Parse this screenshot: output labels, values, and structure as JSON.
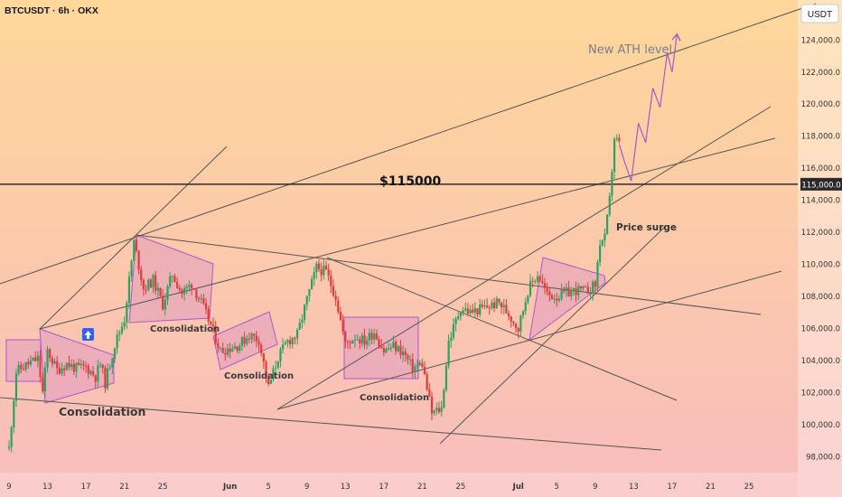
{
  "header": {
    "symbol": "BTCUSDT · 6h · OKX",
    "currency": "USDT"
  },
  "annotations": {
    "ath": "New ATH level",
    "level": "$115000",
    "surge": "Price surge",
    "consolidation": "Consolidation"
  },
  "colors": {
    "bg_top": "#ffd79a",
    "bg_bottom": "#f8bcbc",
    "up": "#2ca25f",
    "down": "#e23b3b",
    "zone_fill": "#d890c4",
    "zone_stroke": "#b058c8",
    "projection": "#a25ad0",
    "trendline": "#555555",
    "hline": "#2b2b2b"
  },
  "chart_data": {
    "type": "candlestick",
    "ylim": [
      97000,
      126500
    ],
    "y_ticks": [
      98000,
      100000,
      102000,
      104000,
      106000,
      108000,
      110000,
      112000,
      114000,
      116000,
      118000,
      120000,
      122000,
      124000
    ],
    "y_tick_labels": [
      "98,000.0",
      "100,000.0",
      "102,000.0",
      "104,000.0",
      "106,000.0",
      "108,000.0",
      "110,000.0",
      "112,000.0",
      "114,000.0",
      "116,000.0",
      "118,000.0",
      "120,000.0",
      "122,000.0",
      "124,000.0"
    ],
    "x_range": [
      "2025-05-09",
      "2025-07-28"
    ],
    "x_ticks": [
      {
        "date": "2025-05-09",
        "label": "9"
      },
      {
        "date": "2025-05-13",
        "label": "13"
      },
      {
        "date": "2025-05-17",
        "label": "17"
      },
      {
        "date": "2025-05-21",
        "label": "21"
      },
      {
        "date": "2025-05-25",
        "label": "25"
      },
      {
        "date": "2025-06-01",
        "label": "Jun"
      },
      {
        "date": "2025-06-05",
        "label": "5"
      },
      {
        "date": "2025-06-09",
        "label": "9"
      },
      {
        "date": "2025-06-13",
        "label": "13"
      },
      {
        "date": "2025-06-17",
        "label": "17"
      },
      {
        "date": "2025-06-21",
        "label": "21"
      },
      {
        "date": "2025-06-25",
        "label": "25"
      },
      {
        "date": "2025-07-01",
        "label": "Jul"
      },
      {
        "date": "2025-07-05",
        "label": "5"
      },
      {
        "date": "2025-07-09",
        "label": "9"
      },
      {
        "date": "2025-07-13",
        "label": "13"
      },
      {
        "date": "2025-07-17",
        "label": "17"
      },
      {
        "date": "2025-07-21",
        "label": "21"
      },
      {
        "date": "2025-07-25",
        "label": "25"
      }
    ],
    "price_level": {
      "value": 115000,
      "label": "115,000.0"
    },
    "price_path": [
      [
        "2025-05-09",
        98500
      ],
      [
        "2025-05-09T18:00",
        103300
      ],
      [
        "2025-05-11",
        103800
      ],
      [
        "2025-05-12",
        104100
      ],
      [
        "2025-05-12T12:00",
        102000
      ],
      [
        "2025-05-13",
        104600
      ],
      [
        "2025-05-14",
        103400
      ],
      [
        "2025-05-15",
        103800
      ],
      [
        "2025-05-16",
        103500
      ],
      [
        "2025-05-17",
        103600
      ],
      [
        "2025-05-18",
        103000
      ],
      [
        "2025-05-18T12:00",
        103800
      ],
      [
        "2025-05-19",
        102600
      ],
      [
        "2025-05-20",
        105000
      ],
      [
        "2025-05-21",
        106600
      ],
      [
        "2025-05-21T18:00",
        110200
      ],
      [
        "2025-05-22",
        111400
      ],
      [
        "2025-05-23",
        108500
      ],
      [
        "2025-05-24",
        109000
      ],
      [
        "2025-05-25",
        107500
      ],
      [
        "2025-05-26",
        109400
      ],
      [
        "2025-05-27",
        108200
      ],
      [
        "2025-05-28",
        108800
      ],
      [
        "2025-05-29",
        107600
      ],
      [
        "2025-05-30",
        106200
      ],
      [
        "2025-05-31",
        104600
      ],
      [
        "2025-06-01",
        104800
      ],
      [
        "2025-06-02",
        105000
      ],
      [
        "2025-06-03",
        105600
      ],
      [
        "2025-06-04",
        105300
      ],
      [
        "2025-06-05",
        102300
      ],
      [
        "2025-06-06",
        104200
      ],
      [
        "2025-06-07",
        105200
      ],
      [
        "2025-06-08",
        105600
      ],
      [
        "2025-06-09",
        107800
      ],
      [
        "2025-06-10",
        109800
      ],
      [
        "2025-06-11",
        109500
      ],
      [
        "2025-06-12",
        108000
      ],
      [
        "2025-06-13",
        105000
      ],
      [
        "2025-06-14",
        105500
      ],
      [
        "2025-06-15",
        105200
      ],
      [
        "2025-06-16",
        105800
      ],
      [
        "2025-06-17",
        104600
      ],
      [
        "2025-06-18",
        104900
      ],
      [
        "2025-06-19",
        104500
      ],
      [
        "2025-06-20",
        103500
      ],
      [
        "2025-06-21",
        103800
      ],
      [
        "2025-06-22",
        100700
      ],
      [
        "2025-06-23",
        101000
      ],
      [
        "2025-06-23T18:00",
        105200
      ],
      [
        "2025-06-24",
        105600
      ],
      [
        "2025-06-25",
        107300
      ],
      [
        "2025-06-26",
        107000
      ],
      [
        "2025-06-27",
        107200
      ],
      [
        "2025-06-28",
        107400
      ],
      [
        "2025-06-29",
        107600
      ],
      [
        "2025-06-30",
        106900
      ],
      [
        "2025-07-01",
        106000
      ],
      [
        "2025-07-02",
        108400
      ],
      [
        "2025-07-03",
        109400
      ],
      [
        "2025-07-04",
        108100
      ],
      [
        "2025-07-05",
        108000
      ],
      [
        "2025-07-06",
        108200
      ],
      [
        "2025-07-07",
        108400
      ],
      [
        "2025-07-08",
        108300
      ],
      [
        "2025-07-09",
        108700
      ],
      [
        "2025-07-09T12:00",
        111400
      ],
      [
        "2025-07-10",
        111600
      ],
      [
        "2025-07-10T12:00",
        114000
      ],
      [
        "2025-07-11",
        117900
      ],
      [
        "2025-07-11T12:00",
        117500
      ]
    ],
    "projection_path": [
      [
        "2025-07-11T12:00",
        117500
      ],
      [
        "2025-07-12",
        116500
      ],
      [
        "2025-07-12T18:00",
        115200
      ],
      [
        "2025-07-13T12:00",
        118800
      ],
      [
        "2025-07-14T06:00",
        117600
      ],
      [
        "2025-07-15",
        121000
      ],
      [
        "2025-07-15T18:00",
        119800
      ],
      [
        "2025-07-16T12:00",
        123200
      ],
      [
        "2025-07-17",
        122000
      ],
      [
        "2025-07-17T12:00",
        124300
      ]
    ]
  }
}
